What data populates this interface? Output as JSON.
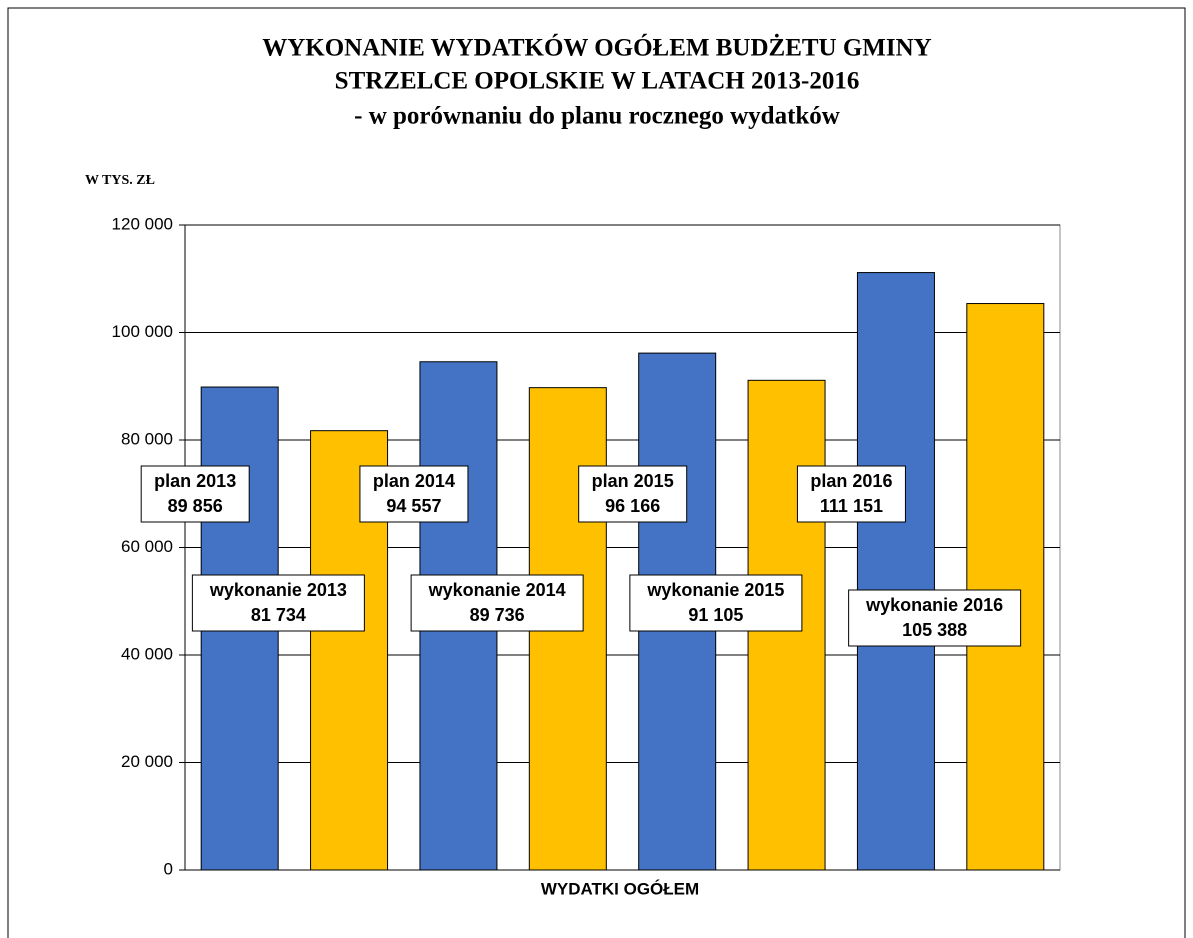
{
  "chart_data": {
    "type": "bar",
    "title": [
      "WYKONANIE WYDATKÓW OGÓŁEM BUDŻETU GMINY",
      "STRZELCE OPOLSKIE W LATACH 2013-2016"
    ],
    "subtitle": "- w porównaniu do planu rocznego wydatków",
    "y_label": "W TYS. ZŁ",
    "x_label": "WYDATKI OGÓŁEM",
    "categories": [
      "WYDATKI OGÓŁEM"
    ],
    "series": [
      {
        "name": "plan 2013",
        "color": "#4472c4",
        "values": [
          89856
        ],
        "value_labels": [
          "89 856"
        ]
      },
      {
        "name": "wykonanie 2013",
        "color": "#ffc000",
        "values": [
          81734
        ],
        "value_labels": [
          "81 734"
        ]
      },
      {
        "name": "plan 2014",
        "color": "#4472c4",
        "values": [
          94557
        ],
        "value_labels": [
          "94 557"
        ]
      },
      {
        "name": "wykonanie 2014",
        "color": "#ffc000",
        "values": [
          89736
        ],
        "value_labels": [
          "89 736"
        ]
      },
      {
        "name": "plan 2015",
        "color": "#4472c4",
        "values": [
          96166
        ],
        "value_labels": [
          "96 166"
        ]
      },
      {
        "name": "wykonanie 2015",
        "color": "#ffc000",
        "values": [
          91105
        ],
        "value_labels": [
          "91 105"
        ]
      },
      {
        "name": "plan 2016",
        "color": "#4472c4",
        "values": [
          111151
        ],
        "value_labels": [
          "111 151"
        ]
      },
      {
        "name": "wykonanie 2016",
        "color": "#ffc000",
        "values": [
          105388
        ],
        "value_labels": [
          "105 388"
        ]
      }
    ],
    "ylim": [
      0,
      120000
    ],
    "yticks": [
      0,
      {
        "value": 20000,
        "label": "20 000"
      },
      {
        "value": 40000,
        "label": "40 000"
      },
      {
        "value": 60000,
        "label": "60 000"
      },
      {
        "value": 80000,
        "label": "80 000"
      },
      {
        "value": 100000,
        "label": "100 000"
      },
      {
        "value": 120000,
        "label": "120 000"
      }
    ],
    "grid": true,
    "legend": false
  }
}
